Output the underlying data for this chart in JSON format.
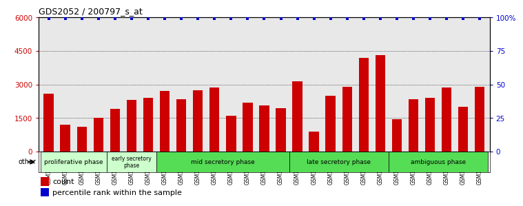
{
  "title": "GDS2052 / 200797_s_at",
  "samples": [
    "GSM109814",
    "GSM109815",
    "GSM109816",
    "GSM109817",
    "GSM109820",
    "GSM109821",
    "GSM109822",
    "GSM109824",
    "GSM109825",
    "GSM109826",
    "GSM109827",
    "GSM109828",
    "GSM109829",
    "GSM109830",
    "GSM109831",
    "GSM109834",
    "GSM109835",
    "GSM109836",
    "GSM109837",
    "GSM109838",
    "GSM109839",
    "GSM109818",
    "GSM109819",
    "GSM109823",
    "GSM109832",
    "GSM109833",
    "GSM109840"
  ],
  "counts": [
    2600,
    1200,
    1100,
    1500,
    1900,
    2300,
    2400,
    2700,
    2350,
    2750,
    2850,
    1600,
    2200,
    2050,
    1950,
    3150,
    900,
    2500,
    2900,
    4200,
    4300,
    1450,
    2350,
    2400,
    2850,
    2000,
    2900
  ],
  "percentile": [
    99,
    99,
    99,
    99,
    99,
    99,
    99,
    99,
    99,
    99,
    99,
    99,
    99,
    99,
    99,
    99,
    99,
    99,
    99,
    99,
    99,
    99,
    99,
    99,
    99,
    99,
    99
  ],
  "bar_color": "#cc0000",
  "dot_color": "#0000cc",
  "ylim_left": [
    0,
    6000
  ],
  "ylim_right": [
    0,
    100
  ],
  "yticks_left": [
    0,
    1500,
    3000,
    4500,
    6000
  ],
  "yticks_right": [
    0,
    25,
    50,
    75,
    100
  ],
  "ytick_labels_left": [
    "0",
    "1500",
    "3000",
    "4500",
    "6000"
  ],
  "ytick_labels_right": [
    "0",
    "25",
    "50",
    "75",
    "100%"
  ],
  "phase_defs": [
    {
      "label": "proliferative phase",
      "start": 0,
      "end": 3,
      "color": "#ccffcc",
      "fontsize": 6.5
    },
    {
      "label": "early secretory\nphase",
      "start": 4,
      "end": 6,
      "color": "#ccffcc",
      "fontsize": 5.5
    },
    {
      "label": "mid secretory phase",
      "start": 7,
      "end": 14,
      "color": "#55dd55",
      "fontsize": 6.5
    },
    {
      "label": "late secretory phase",
      "start": 15,
      "end": 20,
      "color": "#55dd55",
      "fontsize": 6.5
    },
    {
      "label": "ambiguous phase",
      "start": 21,
      "end": 26,
      "color": "#55dd55",
      "fontsize": 6.5
    }
  ],
  "other_label": "other",
  "legend_count": "count",
  "legend_pct": "percentile rank within the sample",
  "background_color": "#ffffff"
}
